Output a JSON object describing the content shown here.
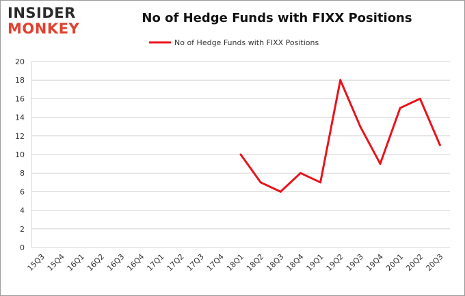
{
  "logo": {
    "line1": "INSIDER",
    "line2": "MONKEY"
  },
  "chart_data": {
    "type": "line",
    "title": "No of Hedge Funds with FIXX Positions",
    "categories": [
      "15Q3",
      "15Q4",
      "16Q1",
      "16Q2",
      "16Q3",
      "16Q4",
      "17Q1",
      "17Q2",
      "17Q3",
      "17Q4",
      "18Q1",
      "18Q2",
      "18Q3",
      "18Q4",
      "19Q1",
      "19Q2",
      "19Q3",
      "19Q4",
      "20Q1",
      "20Q2",
      "20Q3"
    ],
    "series": [
      {
        "name": "No of Hedge Funds with FIXX Positions",
        "values": [
          null,
          null,
          null,
          null,
          null,
          null,
          null,
          null,
          null,
          null,
          10,
          7,
          6,
          8,
          7,
          18,
          13,
          9,
          15,
          16,
          11
        ]
      }
    ],
    "ylim": [
      0,
      20
    ],
    "yticks": [
      0,
      2,
      4,
      6,
      8,
      10,
      12,
      14,
      16,
      18,
      20
    ],
    "grid": true,
    "legend": "top-center",
    "line_color": "#e8131c"
  }
}
